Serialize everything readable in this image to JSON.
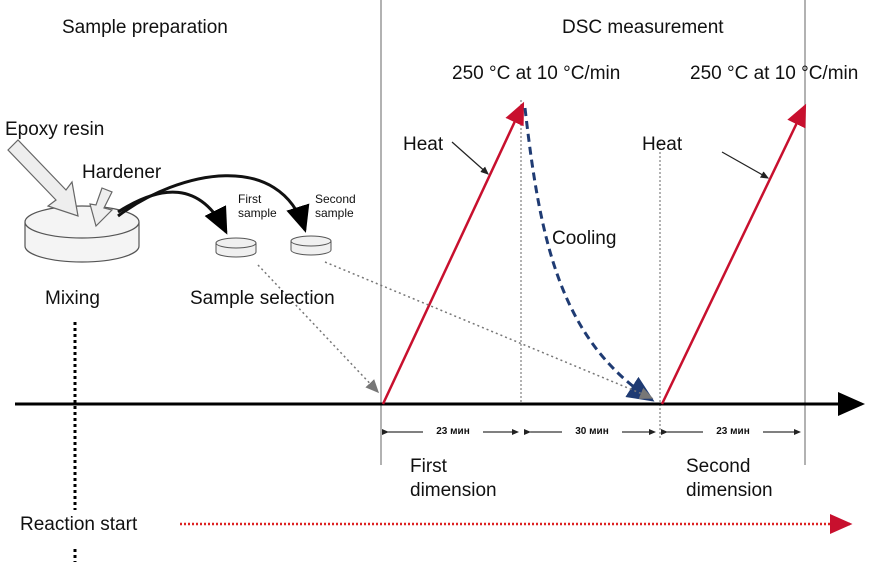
{
  "header": {
    "left": "Sample preparation",
    "right": "DSC measurement"
  },
  "heating": [
    {
      "condition": "250 °C at 10 °C/min",
      "label": "Heat"
    },
    {
      "condition": "250 °C at 10 °C/min",
      "label": "Heat"
    }
  ],
  "preparation": {
    "epoxy": "Epoxy resin",
    "hardener": "Hardener",
    "first_sample": "First sample",
    "second_sample": "Second sample",
    "mixing": "Mixing",
    "selection": "Sample selection"
  },
  "cooling": "Cooling",
  "intervals": [
    "23 мин",
    "30 мин",
    "23 мин"
  ],
  "dimensions": [
    "First dimension",
    "Second dimension"
  ],
  "reaction": "Reaction start"
}
